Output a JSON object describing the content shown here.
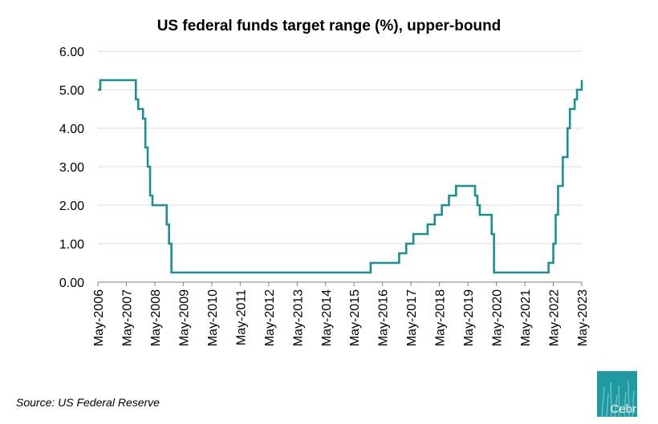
{
  "chart_data": {
    "type": "line",
    "title": "US federal funds target range (%), upper-bound",
    "xlabel": "",
    "ylabel": "",
    "ylim": [
      0,
      6
    ],
    "y_ticks": [
      "0.00",
      "1.00",
      "2.00",
      "3.00",
      "4.00",
      "5.00",
      "6.00"
    ],
    "x_ticks": [
      "May-2006",
      "May-2007",
      "May-2008",
      "May-2009",
      "May-2010",
      "May-2011",
      "May-2012",
      "May-2013",
      "May-2014",
      "May-2015",
      "May-2016",
      "May-2017",
      "May-2018",
      "May-2019",
      "May-2020",
      "May-2021",
      "May-2022",
      "May-2023"
    ],
    "grid": "horizontal",
    "line_color": "#1a8f94",
    "series": [
      {
        "step": "post",
        "points": [
          [
            "2006-05",
            5.0
          ],
          [
            "2006-06",
            5.25
          ],
          [
            "2007-09",
            4.75
          ],
          [
            "2007-10",
            4.5
          ],
          [
            "2007-12",
            4.25
          ],
          [
            "2008-01",
            3.5
          ],
          [
            "2008-02",
            3.0
          ],
          [
            "2008-03",
            2.25
          ],
          [
            "2008-04",
            2.0
          ],
          [
            "2008-10",
            1.5
          ],
          [
            "2008-11",
            1.0
          ],
          [
            "2008-12",
            0.25
          ],
          [
            "2015-12",
            0.5
          ],
          [
            "2016-12",
            0.75
          ],
          [
            "2017-03",
            1.0
          ],
          [
            "2017-06",
            1.25
          ],
          [
            "2017-12",
            1.5
          ],
          [
            "2018-03",
            1.75
          ],
          [
            "2018-06",
            2.0
          ],
          [
            "2018-09",
            2.25
          ],
          [
            "2018-12",
            2.5
          ],
          [
            "2019-08",
            2.25
          ],
          [
            "2019-09",
            2.0
          ],
          [
            "2019-10",
            1.75
          ],
          [
            "2020-03",
            1.25
          ],
          [
            "2020-04",
            0.25
          ],
          [
            "2022-03",
            0.5
          ],
          [
            "2022-05",
            1.0
          ],
          [
            "2022-06",
            1.75
          ],
          [
            "2022-07",
            2.5
          ],
          [
            "2022-09",
            3.25
          ],
          [
            "2022-11",
            4.0
          ],
          [
            "2022-12",
            4.5
          ],
          [
            "2023-02",
            4.75
          ],
          [
            "2023-03",
            5.0
          ],
          [
            "2023-05",
            5.25
          ]
        ]
      }
    ]
  },
  "source": "Source: US Federal Reserve",
  "logo_text": "Cebr",
  "colors": {
    "logo_bg": "#1e9aa0"
  }
}
